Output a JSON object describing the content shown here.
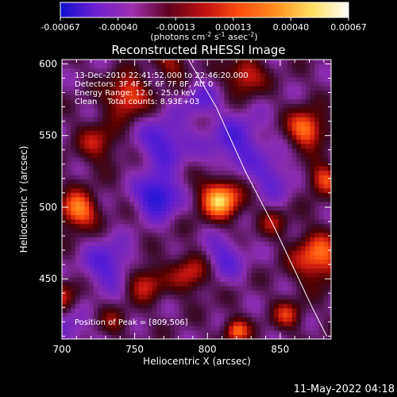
{
  "chart_data": {
    "type": "heatmap",
    "title": "Reconstructed RHESSI Image",
    "xlabel": "Heliocentric X (arcsec)",
    "ylabel": "Heliocentric Y (arcsec)",
    "xlim": [
      700,
      885
    ],
    "ylim": [
      408,
      603
    ],
    "x_ticks": [
      700,
      750,
      800,
      850
    ],
    "y_ticks": [
      450,
      500,
      550,
      600
    ],
    "colorbar": {
      "min": -0.00067,
      "max": 0.00067,
      "ticks": [
        "-0.00067",
        "-0.00040",
        "-0.00013",
        "0.00013",
        "0.00040",
        "0.00067"
      ],
      "unit_main": "(photons cm",
      "unit_exp1": "-2",
      "unit_mid": " s",
      "unit_exp2": "-1",
      "unit_mid2": " asec",
      "unit_exp3": "-2",
      "unit_end": ")",
      "colors": [
        "#1010d0",
        "#7020d0",
        "#a030b0",
        "#600020",
        "#c01010",
        "#ff5010",
        "#ff9020",
        "#ffe060",
        "#ffffff"
      ]
    },
    "annotations": [
      "13-Dec-2010 22:41:52.000 to 22:46:20.000",
      "Detectors: 3F 4F 5F 6F 7F 8F, Att 0",
      "Energy Range: 12.0 - 25.0 keV",
      "Clean    Total counts: 8.93E+03"
    ],
    "peak_text": "Position of Peak = [809,506]",
    "peak": [
      809,
      506
    ],
    "hotspots": [
      {
        "x": 809,
        "y": 506,
        "v": 1.0,
        "r": 10
      },
      {
        "x": 711,
        "y": 498,
        "v": 0.85,
        "r": 9
      },
      {
        "x": 868,
        "y": 555,
        "v": 0.8,
        "r": 9
      },
      {
        "x": 745,
        "y": 578,
        "v": 0.7,
        "r": 10
      },
      {
        "x": 876,
        "y": 465,
        "v": 0.75,
        "r": 12
      },
      {
        "x": 826,
        "y": 592,
        "v": 0.6,
        "r": 9
      },
      {
        "x": 757,
        "y": 448,
        "v": 0.55,
        "r": 9
      },
      {
        "x": 790,
        "y": 455,
        "v": 0.55,
        "r": 10
      },
      {
        "x": 820,
        "y": 414,
        "v": 0.7,
        "r": 6
      },
      {
        "x": 725,
        "y": 545,
        "v": 0.45,
        "r": 10
      },
      {
        "x": 880,
        "y": 520,
        "v": 0.6,
        "r": 8
      },
      {
        "x": 700,
        "y": 438,
        "v": 0.45,
        "r": 8
      },
      {
        "x": 855,
        "y": 425,
        "v": 0.5,
        "r": 7
      },
      {
        "x": 776,
        "y": 600,
        "v": 0.4,
        "r": 8
      },
      {
        "x": 735,
        "y": 420,
        "v": 0.3,
        "r": 7
      },
      {
        "x": 845,
        "y": 490,
        "v": 0.35,
        "r": 7
      }
    ],
    "coldspots": [
      {
        "x": 766,
        "y": 508,
        "v": -0.8,
        "r": 10
      },
      {
        "x": 732,
        "y": 460,
        "v": -0.5,
        "r": 12
      },
      {
        "x": 770,
        "y": 545,
        "v": -0.55,
        "r": 12
      },
      {
        "x": 820,
        "y": 545,
        "v": -0.5,
        "r": 14
      },
      {
        "x": 810,
        "y": 465,
        "v": -0.45,
        "r": 11
      },
      {
        "x": 845,
        "y": 520,
        "v": -0.4,
        "r": 10
      },
      {
        "x": 705,
        "y": 415,
        "v": -0.35,
        "r": 9
      },
      {
        "x": 795,
        "y": 575,
        "v": -0.35,
        "r": 9
      }
    ],
    "limb_points": [
      [
        787,
        603
      ],
      [
        806,
        570
      ],
      [
        826,
        525
      ],
      [
        845,
        488
      ],
      [
        860,
        456
      ],
      [
        872,
        430
      ],
      [
        882,
        410
      ]
    ]
  },
  "footer": {
    "timestamp": "11-May-2022 04:18"
  }
}
